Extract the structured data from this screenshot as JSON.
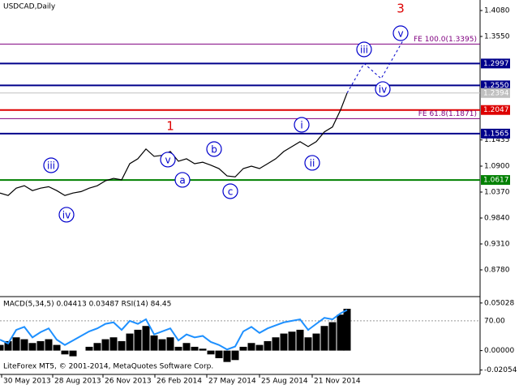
{
  "chart_data": {
    "type": "line",
    "title": "USDCAD,Daily",
    "x": [
      0,
      1,
      2,
      3,
      4,
      5,
      6,
      7,
      8,
      9,
      10,
      11,
      12,
      13,
      14,
      15,
      16,
      17,
      18,
      19,
      20,
      21,
      22,
      23,
      24,
      25,
      26,
      27,
      28,
      29,
      30,
      31,
      32,
      33,
      34,
      35,
      36,
      37,
      38,
      39,
      40,
      41,
      42,
      42.8
    ],
    "series": [
      {
        "color": "#000000",
        "values": [
          1.035,
          1.03,
          1.045,
          1.05,
          1.04,
          1.045,
          1.048,
          1.04,
          1.03,
          1.035,
          1.038,
          1.045,
          1.05,
          1.06,
          1.065,
          1.062,
          1.095,
          1.105,
          1.125,
          1.11,
          1.112,
          1.12,
          1.1,
          1.105,
          1.095,
          1.098,
          1.092,
          1.085,
          1.07,
          1.068,
          1.085,
          1.09,
          1.085,
          1.095,
          1.105,
          1.12,
          1.13,
          1.14,
          1.13,
          1.14,
          1.16,
          1.17,
          1.205,
          1.2394
        ]
      }
    ],
    "projection": {
      "color": "#0000cc",
      "x": [
        42.8,
        44.9,
        47,
        49.7
      ],
      "values": [
        1.2394,
        1.3,
        1.2689,
        1.3467
      ]
    },
    "xlim": [
      0,
      59.2
    ],
    "ylim": [
      0.825,
      1.4295
    ],
    "yticks": [
      {
        "value": 1.408,
        "label": "1.4080"
      },
      {
        "value": 1.355,
        "label": "1.3550"
      },
      {
        "value": 1.1435,
        "label": "1.1435"
      },
      {
        "value": 1.09,
        "label": "1.0900"
      },
      {
        "value": 1.037,
        "label": "1.0370"
      },
      {
        "value": 0.984,
        "label": "0.9840"
      },
      {
        "value": 0.931,
        "label": "0.9310"
      },
      {
        "value": 0.878,
        "label": "0.8780"
      }
    ],
    "xticks": [
      {
        "value": 0.2,
        "label": "30 May 2013"
      },
      {
        "value": 6.5,
        "label": "28 Aug 2013"
      },
      {
        "value": 12.7,
        "label": "26 Nov 2013"
      },
      {
        "value": 19.1,
        "label": "26 Feb 2014"
      },
      {
        "value": 25.5,
        "label": "27 May 2014"
      },
      {
        "value": 32,
        "label": "25 Aug 2014"
      },
      {
        "value": 38.5,
        "label": "21 Nov 2014"
      }
    ],
    "levels": [
      {
        "value": 1.3395,
        "label": "FE 100.0(1.3395)",
        "color": "#800080",
        "style": "text"
      },
      {
        "value": 1.2997,
        "label": "1.2997",
        "color": "#00008b",
        "style": "box"
      },
      {
        "value": 1.255,
        "label": "1.2550",
        "color": "#00008b",
        "style": "box"
      },
      {
        "value": 1.2394,
        "label": "1.2394",
        "color": "#c0c0c0",
        "style": "box"
      },
      {
        "value": 1.2047,
        "label": "1.2047",
        "color": "#dd0000",
        "style": "box"
      },
      {
        "value": 1.1871,
        "label": "FE 61.8(1.1871)",
        "color": "#800080",
        "style": "text"
      },
      {
        "value": 1.1565,
        "label": "1.1565",
        "color": "#00008b",
        "style": "box"
      },
      {
        "value": 1.0617,
        "label": "1.0617",
        "color": "#008000",
        "style": "box"
      }
    ],
    "annotations": [
      {
        "text": "iii",
        "x": 6.3,
        "y": 1.0917,
        "color": "#0000cc",
        "circle": true
      },
      {
        "text": "iv",
        "x": 8.2,
        "y": 0.9907,
        "color": "#0000cc",
        "circle": true
      },
      {
        "text": "1",
        "x": 21,
        "y": 1.1728,
        "color": "#dd0000",
        "circle": false
      },
      {
        "text": "v",
        "x": 20.7,
        "y": 1.1033,
        "color": "#0000cc",
        "circle": true
      },
      {
        "text": "a",
        "x": 22.5,
        "y": 1.0619,
        "color": "#0000cc",
        "circle": true
      },
      {
        "text": "b",
        "x": 26.4,
        "y": 1.1248,
        "color": "#0000cc",
        "circle": true
      },
      {
        "text": "c",
        "x": 28.4,
        "y": 1.0387,
        "color": "#0000cc",
        "circle": true
      },
      {
        "text": "i",
        "x": 37.2,
        "y": 1.1745,
        "color": "#0000cc",
        "circle": true
      },
      {
        "text": "ii",
        "x": 38.5,
        "y": 1.0967,
        "color": "#0000cc",
        "circle": true
      },
      {
        "text": "iii",
        "x": 44.9,
        "y": 1.3285,
        "color": "#0000cc",
        "circle": true
      },
      {
        "text": "iv",
        "x": 47.2,
        "y": 1.2474,
        "color": "#0000cc",
        "circle": true
      },
      {
        "text": "v",
        "x": 49.4,
        "y": 1.3616,
        "color": "#0000cc",
        "circle": true
      },
      {
        "text": "3",
        "x": 49.4,
        "y": 1.413,
        "color": "#dd0000",
        "circle": false
      }
    ],
    "indicator": {
      "title": "MACD(5,34,5) 0.04413 0.03487 RSI(14) 84.45",
      "macd": {
        "color": "#000000",
        "values": [
          0.006,
          0.01,
          0.014,
          0.012,
          0.008,
          0.01,
          0.012,
          0.006,
          -0.004,
          -0.006,
          0.0,
          0.004,
          0.008,
          0.012,
          0.014,
          0.01,
          0.018,
          0.022,
          0.026,
          0.016,
          0.012,
          0.014,
          0.004,
          0.008,
          0.004,
          0.002,
          -0.004,
          -0.008,
          -0.012,
          -0.01,
          0.004,
          0.008,
          0.006,
          0.01,
          0.014,
          0.018,
          0.02,
          0.022,
          0.014,
          0.018,
          0.026,
          0.03,
          0.038,
          0.04413
        ]
      },
      "rsi": {
        "color": "#1e90ff",
        "values": [
          45,
          40,
          58,
          62,
          48,
          55,
          60,
          45,
          38,
          44,
          50,
          56,
          60,
          66,
          68,
          58,
          70,
          66,
          72,
          52,
          56,
          60,
          44,
          52,
          48,
          50,
          42,
          38,
          32,
          36,
          56,
          62,
          54,
          60,
          64,
          68,
          70,
          72,
          58,
          66,
          74,
          72,
          80,
          84.45
        ]
      },
      "ylim": [
        -0.0243,
        0.0553
      ],
      "y2lim": [
        0,
        100
      ],
      "yticks": [
        {
          "value": 0.05028,
          "label": "0.05028"
        },
        {
          "value": 0,
          "label": "0.00000"
        },
        {
          "value": -0.02054,
          "label": "-0.02054"
        }
      ],
      "y2ticks": [
        {
          "value": 70,
          "label": "70.00"
        }
      ]
    },
    "footer": "LiteForex MT5, © 2001-2014, MetaQuotes Software Corp."
  }
}
